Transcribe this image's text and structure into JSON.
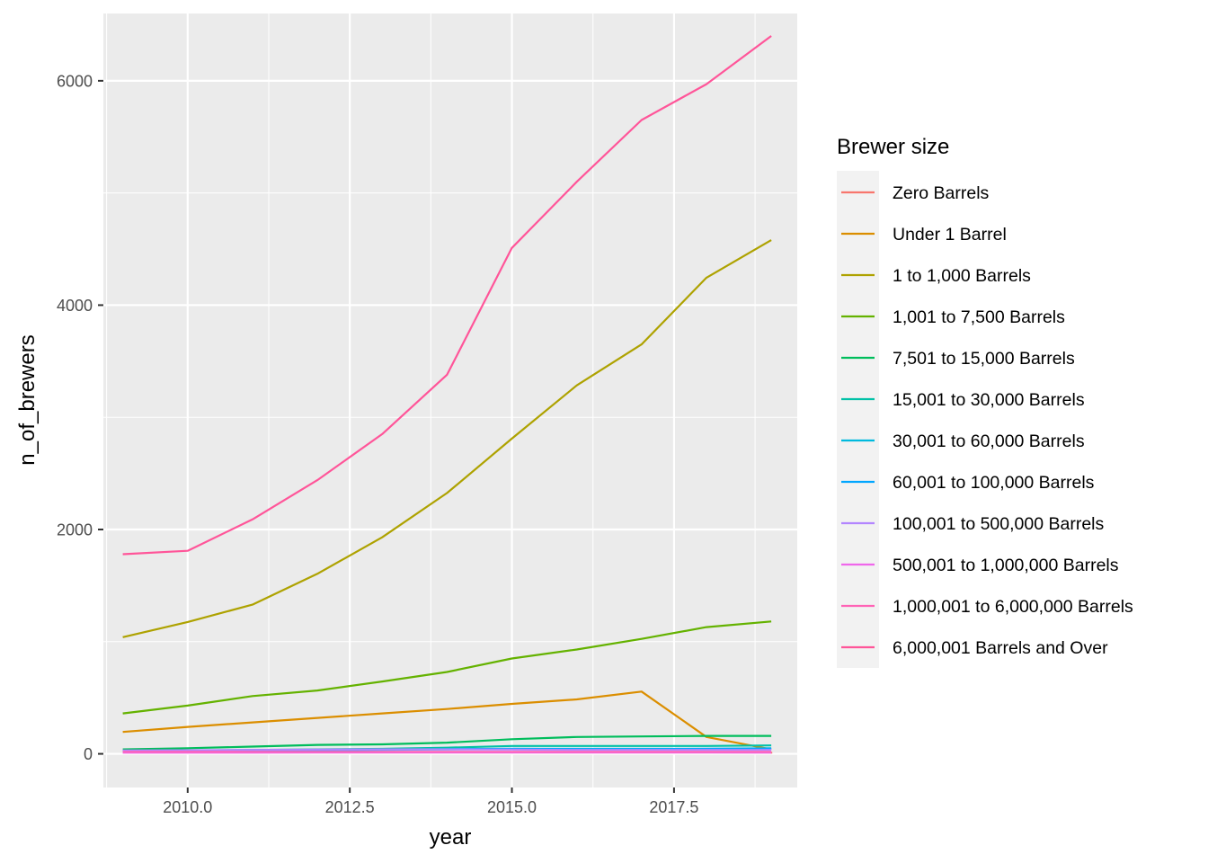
{
  "chart_data": {
    "type": "line",
    "xlabel": "year",
    "ylabel": "n_of_brewers",
    "xlim": [
      2008.7,
      2019.4
    ],
    "ylim": [
      -300,
      6600
    ],
    "x_ticks": [
      2010.0,
      2012.5,
      2015.0,
      2017.5
    ],
    "x_tick_labels": [
      "2010.0",
      "2012.5",
      "2015.0",
      "2017.5"
    ],
    "y_ticks": [
      0,
      2000,
      4000,
      6000
    ],
    "y_tick_labels": [
      "0",
      "2000",
      "4000",
      "6000"
    ],
    "grid": true,
    "legend": {
      "title": "Brewer size",
      "placement": "right"
    },
    "x": [
      2009,
      2010,
      2011,
      2012,
      2013,
      2014,
      2015,
      2016,
      2017,
      2018,
      2019
    ],
    "series": [
      {
        "name": "Zero Barrels",
        "color": "#F8766D",
        "values": [
          null,
          null,
          null,
          null,
          null,
          null,
          null,
          null,
          null,
          null,
          10
        ]
      },
      {
        "name": "Under 1 Barrel",
        "color": "#DB8E00",
        "values": [
          195,
          240,
          280,
          320,
          360,
          400,
          445,
          485,
          555,
          150,
          40
        ]
      },
      {
        "name": "1 to 1,000 Barrels",
        "color": "#AEA200",
        "values": [
          1040,
          1175,
          1330,
          1605,
          1930,
          2325,
          2810,
          3285,
          3650,
          4245,
          4580
        ]
      },
      {
        "name": "1,001 to 7,500 Barrels",
        "color": "#64B200",
        "values": [
          360,
          430,
          515,
          565,
          645,
          730,
          850,
          930,
          1025,
          1130,
          1180
        ]
      },
      {
        "name": "7,501 to 15,000 Barrels",
        "color": "#00BD5C",
        "values": [
          40,
          50,
          65,
          80,
          85,
          100,
          130,
          150,
          155,
          160,
          160
        ]
      },
      {
        "name": "15,001 to 30,000 Barrels",
        "color": "#00C1A7",
        "values": [
          25,
          30,
          35,
          40,
          45,
          55,
          70,
          70,
          70,
          70,
          75
        ]
      },
      {
        "name": "30,001 to 60,000 Barrels",
        "color": "#00BADE",
        "values": [
          20,
          22,
          25,
          30,
          35,
          40,
          45,
          45,
          45,
          45,
          50
        ]
      },
      {
        "name": "60,001 to 100,000 Barrels",
        "color": "#00A6FF",
        "values": [
          25,
          30,
          32,
          35,
          38,
          42,
          45,
          42,
          42,
          45,
          45
        ]
      },
      {
        "name": "100,001 to 500,000 Barrels",
        "color": "#B385FF",
        "values": [
          30,
          32,
          35,
          38,
          40,
          40,
          38,
          35,
          35,
          35,
          35
        ]
      },
      {
        "name": "500,001 to 1,000,000 Barrels",
        "color": "#EF67EB",
        "values": [
          10,
          10,
          10,
          12,
          12,
          12,
          12,
          12,
          12,
          12,
          10
        ]
      },
      {
        "name": "1,000,001 to 6,000,000 Barrels",
        "color": "#FF63B6",
        "values": [
          18,
          18,
          18,
          18,
          18,
          18,
          18,
          18,
          18,
          18,
          18
        ]
      },
      {
        "name": "6,000,001 Barrels and Over",
        "color": "#FF5599",
        "values": [
          1780,
          1810,
          2090,
          2440,
          2850,
          3380,
          4510,
          5100,
          5650,
          5970,
          6400
        ]
      }
    ]
  }
}
